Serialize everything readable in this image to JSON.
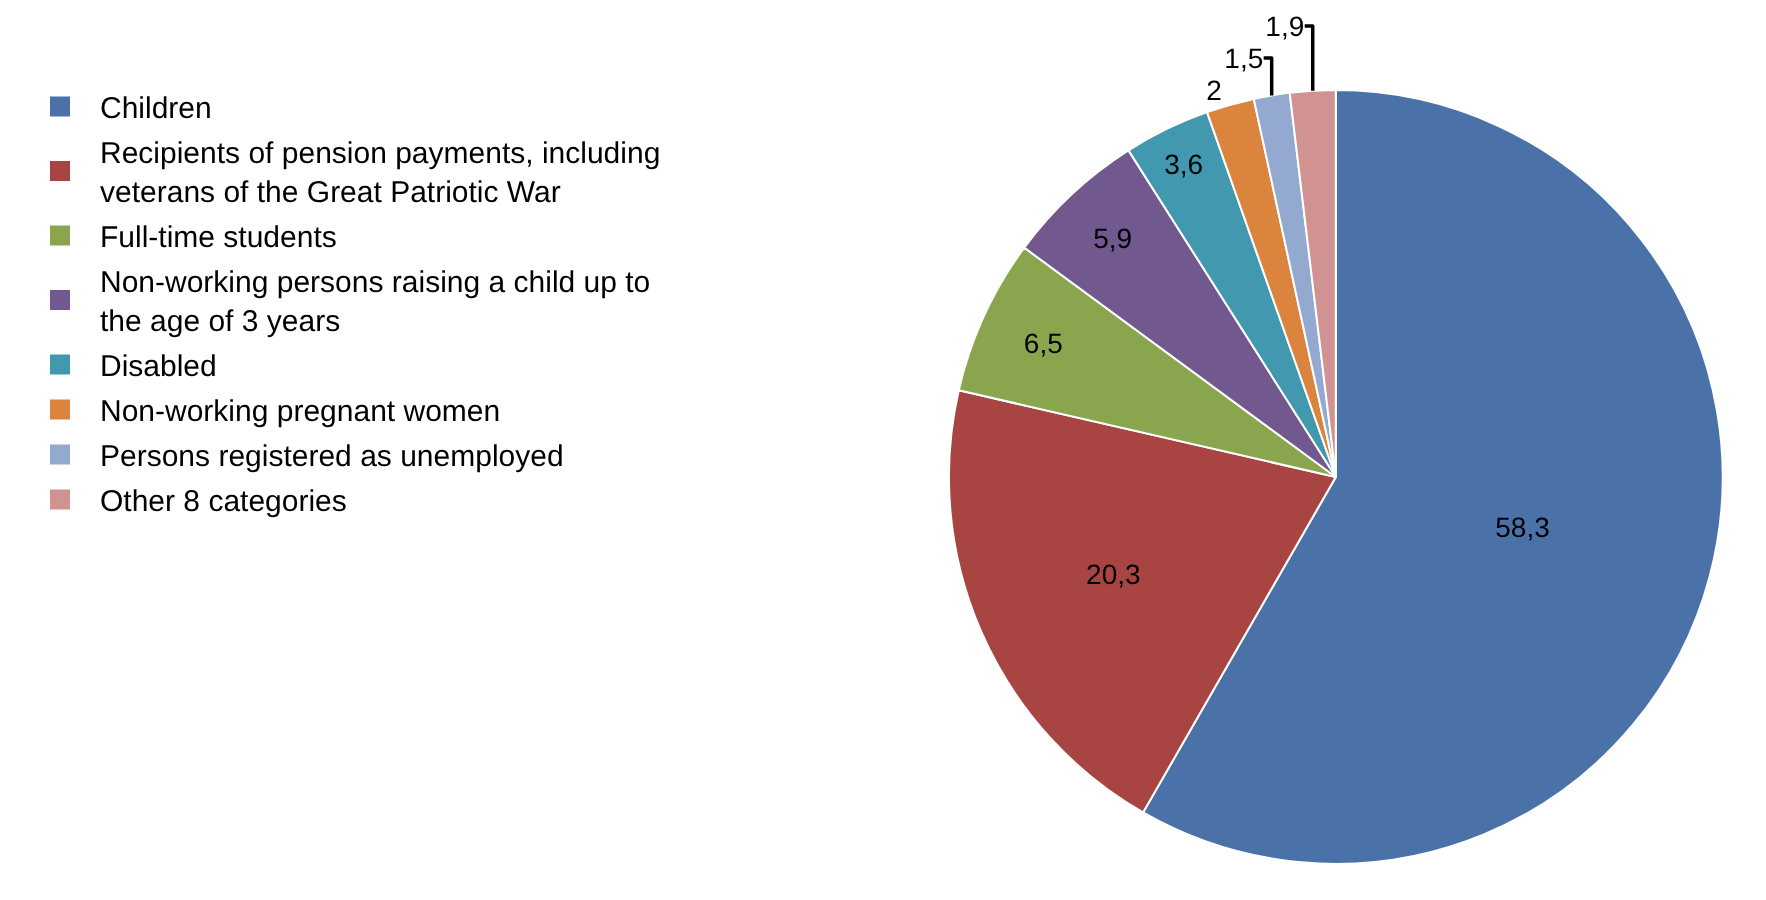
{
  "chart_data": {
    "type": "pie",
    "categories": [
      "Children",
      "Recipients of pension payments, including veterans of the Great Patriotic War",
      "Full-time students",
      "Non-working persons raising a child up to the age of 3 years",
      "Disabled",
      "Non-working pregnant women",
      "Persons registered as unemployed",
      "Other 8 categories"
    ],
    "values": [
      58.3,
      20.3,
      6.5,
      5.9,
      3.6,
      2,
      1.5,
      1.9
    ],
    "value_labels": [
      "58,3",
      "20,3",
      "6,5",
      "5,9",
      "3,6",
      "2",
      "1,5",
      "1,9"
    ],
    "colors": [
      "#4a72a8",
      "#a84542",
      "#89a54e",
      "#71588f",
      "#4198af",
      "#db843d",
      "#93a9cf",
      "#d19392"
    ],
    "legend": "left"
  }
}
